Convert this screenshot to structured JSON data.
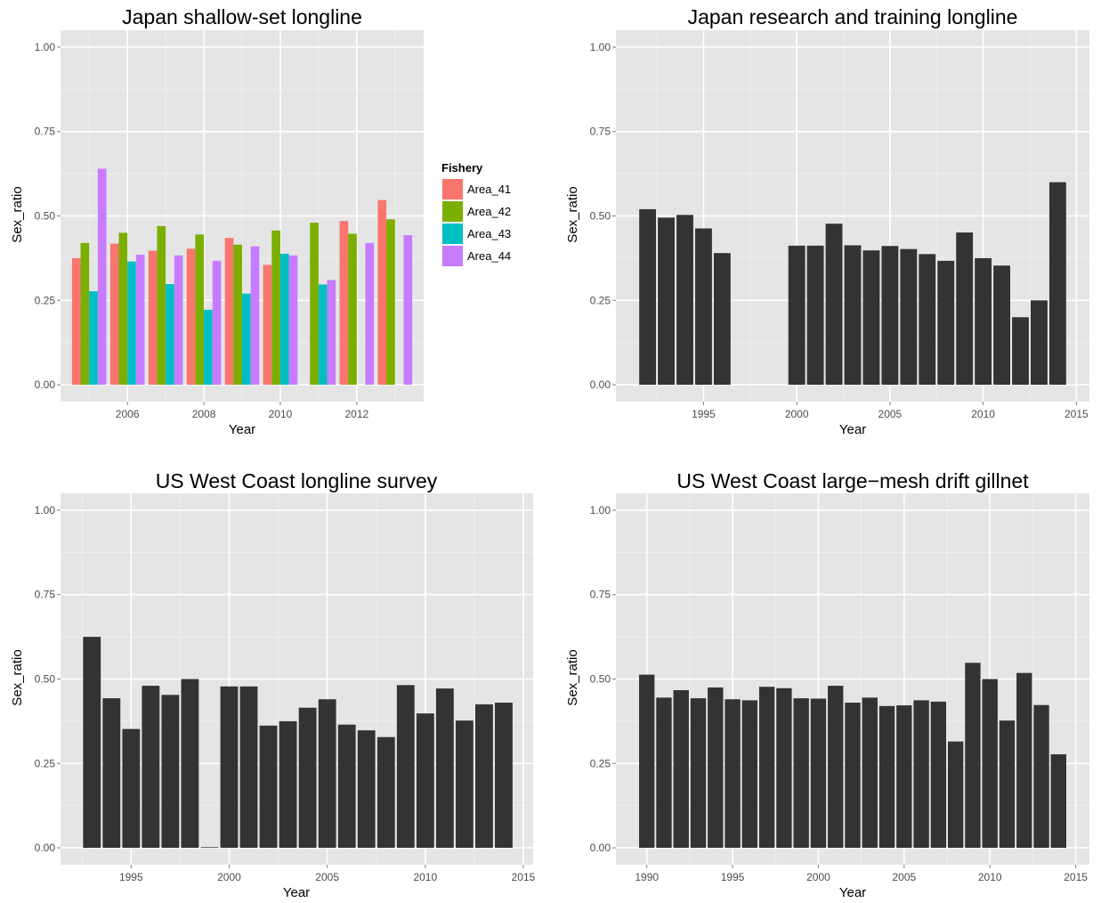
{
  "colors": {
    "panel_bg": "#e5e5e5",
    "grid": "#ffffff",
    "bar": "#333333",
    "tick_text": "#4d4d4d",
    "tick_mark": "#7f7f7f"
  },
  "chart_data": [
    {
      "type": "bar",
      "title": "Japan shallow-set longline",
      "xlabel": "Year",
      "ylabel": "Sex_ratio",
      "xlim": [
        2004.25,
        2013.75
      ],
      "ylim": [
        -0.05,
        1.05
      ],
      "xticks": [
        2006,
        2008,
        2010,
        2012
      ],
      "yticks": [
        0,
        0.25,
        0.5,
        0.75,
        1
      ],
      "ytick_labels": [
        "0.00",
        "0.25",
        "0.50",
        "0.75",
        "1.00"
      ],
      "grid": true,
      "legend": {
        "title": "Fishery",
        "position": "right"
      },
      "bar_group_width": 0.9,
      "series": [
        {
          "name": "Area_41",
          "color": "#f8766d",
          "x": [
            2005,
            2006,
            2007,
            2008,
            2009,
            2010,
            2012,
            2013
          ],
          "values": [
            0.375,
            0.418,
            0.397,
            0.403,
            0.435,
            0.355,
            0.485,
            0.547
          ]
        },
        {
          "name": "Area_42",
          "color": "#7cae00",
          "x": [
            2005,
            2006,
            2007,
            2008,
            2009,
            2010,
            2011,
            2012,
            2013
          ],
          "values": [
            0.42,
            0.45,
            0.47,
            0.445,
            0.415,
            0.457,
            0.48,
            0.447,
            0.49
          ]
        },
        {
          "name": "Area_43",
          "color": "#00bfc4",
          "x": [
            2005,
            2006,
            2007,
            2008,
            2009,
            2010,
            2011
          ],
          "values": [
            0.277,
            0.365,
            0.298,
            0.222,
            0.27,
            0.388,
            0.297
          ]
        },
        {
          "name": "Area_44",
          "color": "#c77cff",
          "x": [
            2005,
            2006,
            2007,
            2008,
            2009,
            2010,
            2011,
            2012,
            2013
          ],
          "values": [
            0.64,
            0.385,
            0.383,
            0.367,
            0.41,
            0.383,
            0.31,
            0.42,
            0.443
          ]
        }
      ]
    },
    {
      "type": "bar",
      "title": "Japan research and training longline",
      "xlabel": "Year",
      "ylabel": "Sex_ratio",
      "xlim": [
        1990.3,
        2015.7
      ],
      "ylim": [
        -0.05,
        1.05
      ],
      "xticks": [
        1995,
        2000,
        2005,
        2010,
        2015
      ],
      "yticks": [
        0,
        0.25,
        0.5,
        0.75,
        1
      ],
      "ytick_labels": [
        "0.00",
        "0.25",
        "0.50",
        "0.75",
        "1.00"
      ],
      "grid": true,
      "x": [
        1992,
        1993,
        1994,
        1995,
        1996,
        2000,
        2001,
        2002,
        2003,
        2004,
        2005,
        2006,
        2007,
        2008,
        2009,
        2010,
        2011,
        2012,
        2013,
        2014
      ],
      "values": [
        0.52,
        0.495,
        0.503,
        0.463,
        0.39,
        0.412,
        0.412,
        0.477,
        0.413,
        0.398,
        0.411,
        0.402,
        0.387,
        0.367,
        0.451,
        0.375,
        0.353,
        0.2,
        0.25,
        0.6
      ]
    },
    {
      "type": "bar",
      "title": "US West Coast longline survey",
      "xlabel": "Year",
      "ylabel": "Sex_ratio",
      "xlim": [
        1991.4,
        2015.5
      ],
      "ylim": [
        -0.05,
        1.05
      ],
      "xticks": [
        1995,
        2000,
        2005,
        2010,
        2015
      ],
      "yticks": [
        0,
        0.25,
        0.5,
        0.75,
        1
      ],
      "ytick_labels": [
        "0.00",
        "0.25",
        "0.50",
        "0.75",
        "1.00"
      ],
      "grid": true,
      "x": [
        1993,
        1994,
        1995,
        1996,
        1997,
        1998,
        1999,
        2000,
        2001,
        2002,
        2003,
        2004,
        2005,
        2006,
        2007,
        2008,
        2009,
        2010,
        2011,
        2012,
        2013,
        2014
      ],
      "values": [
        0.625,
        0.443,
        0.352,
        0.48,
        0.453,
        0.5,
        0.002,
        0.478,
        0.478,
        0.362,
        0.375,
        0.415,
        0.44,
        0.365,
        0.348,
        0.328,
        0.482,
        0.398,
        0.472,
        0.377,
        0.425,
        0.43
      ]
    },
    {
      "type": "bar",
      "title": "US West Coast large−mesh drift gillnet",
      "xlabel": "Year",
      "ylabel": "Sex_ratio",
      "xlim": [
        1988.2,
        2015.8
      ],
      "ylim": [
        -0.05,
        1.05
      ],
      "xticks": [
        1990,
        1995,
        2000,
        2005,
        2010,
        2015
      ],
      "yticks": [
        0,
        0.25,
        0.5,
        0.75,
        1
      ],
      "ytick_labels": [
        "0.00",
        "0.25",
        "0.50",
        "0.75",
        "1.00"
      ],
      "grid": true,
      "x": [
        1990,
        1991,
        1992,
        1993,
        1994,
        1995,
        1996,
        1997,
        1998,
        1999,
        2000,
        2001,
        2002,
        2003,
        2004,
        2005,
        2006,
        2007,
        2008,
        2009,
        2010,
        2011,
        2012,
        2013,
        2014
      ],
      "values": [
        0.513,
        0.445,
        0.467,
        0.443,
        0.475,
        0.44,
        0.437,
        0.477,
        0.473,
        0.443,
        0.442,
        0.48,
        0.43,
        0.445,
        0.42,
        0.422,
        0.437,
        0.433,
        0.315,
        0.548,
        0.5,
        0.377,
        0.518,
        0.423,
        0.277
      ]
    }
  ]
}
